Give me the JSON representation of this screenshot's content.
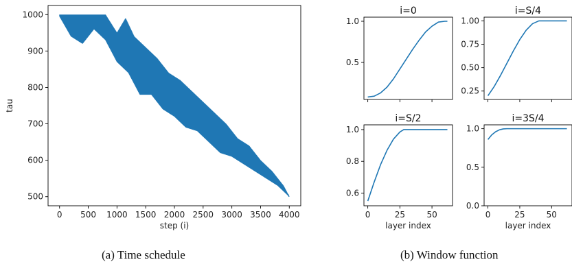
{
  "captions": {
    "left": "(a) Time schedule",
    "right": "(b) Window function"
  },
  "chart_data": [
    {
      "id": "time-schedule",
      "type": "line",
      "title": "",
      "xlabel": "step (i)",
      "ylabel": "tau",
      "xlim": [
        -200,
        4200
      ],
      "ylim": [
        475,
        1025
      ],
      "xticks": [
        0,
        500,
        1000,
        1500,
        2000,
        2500,
        3000,
        3500,
        4000
      ],
      "yticks": [
        500,
        600,
        700,
        800,
        900,
        1000
      ],
      "color": "#1f77b4",
      "grid": false,
      "series": [
        {
          "name": "",
          "description_points": [
            [
              0,
              1000
            ],
            [
              800,
              960
            ],
            [
              1200,
              880
            ],
            [
              1600,
              820
            ],
            [
              2000,
              760
            ],
            [
              2400,
              720
            ],
            [
              2800,
              680
            ],
            [
              3200,
              630
            ],
            [
              3600,
              570
            ],
            [
              4000,
              500
            ]
          ],
          "upper_envelope": [
            [
              0,
              1000
            ],
            [
              400,
              1000
            ],
            [
              800,
              1000
            ],
            [
              1000,
              950
            ],
            [
              1150,
              990
            ],
            [
              1300,
              940
            ],
            [
              1500,
              910
            ],
            [
              1700,
              880
            ],
            [
              1900,
              840
            ],
            [
              2100,
              820
            ],
            [
              2300,
              790
            ],
            [
              2500,
              760
            ],
            [
              2700,
              730
            ],
            [
              2900,
              700
            ],
            [
              3100,
              660
            ],
            [
              3300,
              640
            ],
            [
              3500,
              600
            ],
            [
              3700,
              570
            ],
            [
              3900,
              530
            ],
            [
              4000,
              500
            ]
          ],
          "lower_envelope": [
            [
              0,
              995
            ],
            [
              200,
              940
            ],
            [
              400,
              920
            ],
            [
              600,
              960
            ],
            [
              800,
              930
            ],
            [
              1000,
              870
            ],
            [
              1200,
              840
            ],
            [
              1400,
              780
            ],
            [
              1600,
              780
            ],
            [
              1800,
              740
            ],
            [
              2000,
              720
            ],
            [
              2200,
              690
            ],
            [
              2400,
              680
            ],
            [
              2600,
              650
            ],
            [
              2800,
              620
            ],
            [
              3000,
              610
            ],
            [
              3200,
              590
            ],
            [
              3400,
              570
            ],
            [
              3600,
              550
            ],
            [
              3800,
              530
            ],
            [
              4000,
              500
            ]
          ]
        }
      ]
    },
    {
      "id": "window-i0",
      "type": "line",
      "title": "i=0",
      "xlabel": "",
      "ylabel": "",
      "xlim": [
        -3,
        66
      ],
      "ylim": [
        0.05,
        1.05
      ],
      "yticks": [
        0.5,
        1.0
      ],
      "ytick_labels": [
        "0.5",
        "1.0"
      ],
      "xticks": [
        0,
        25,
        50
      ],
      "show_xtick_labels": false,
      "color": "#1f77b4",
      "series": [
        {
          "name": "",
          "x": [
            0,
            5,
            10,
            15,
            20,
            25,
            30,
            35,
            40,
            45,
            50,
            55,
            60,
            62
          ],
          "y": [
            0.08,
            0.09,
            0.13,
            0.2,
            0.3,
            0.42,
            0.54,
            0.66,
            0.77,
            0.87,
            0.94,
            0.99,
            1.0,
            1.0
          ]
        }
      ]
    },
    {
      "id": "window-i-s4",
      "type": "line",
      "title": "i=S/4",
      "xlabel": "",
      "ylabel": "",
      "xlim": [
        -3,
        66
      ],
      "ylim": [
        0.16,
        1.04
      ],
      "yticks": [
        0.25,
        0.5,
        0.75,
        1.0
      ],
      "ytick_labels": [
        "0.25",
        "0.50",
        "0.75",
        "1.00"
      ],
      "xticks": [
        0,
        25,
        50
      ],
      "show_xtick_labels": false,
      "color": "#1f77b4",
      "series": [
        {
          "name": "",
          "x": [
            0,
            5,
            10,
            15,
            20,
            25,
            30,
            35,
            40,
            45,
            50,
            55,
            60,
            62
          ],
          "y": [
            0.2,
            0.3,
            0.42,
            0.55,
            0.68,
            0.8,
            0.9,
            0.97,
            1.0,
            1.0,
            1.0,
            1.0,
            1.0,
            1.0
          ]
        }
      ]
    },
    {
      "id": "window-i-s2",
      "type": "line",
      "title": "i=S/2",
      "xlabel": "layer index",
      "ylabel": "",
      "xlim": [
        -3,
        66
      ],
      "ylim": [
        0.52,
        1.03
      ],
      "yticks": [
        0.6,
        0.8,
        1.0
      ],
      "ytick_labels": [
        "0.6",
        "0.8",
        "1.0"
      ],
      "xticks": [
        0,
        25,
        50
      ],
      "show_xtick_labels": true,
      "color": "#1f77b4",
      "series": [
        {
          "name": "",
          "x": [
            0,
            5,
            10,
            15,
            20,
            25,
            28,
            30,
            35,
            40,
            45,
            50,
            55,
            60,
            62
          ],
          "y": [
            0.55,
            0.67,
            0.78,
            0.87,
            0.94,
            0.985,
            1.0,
            1.0,
            1.0,
            1.0,
            1.0,
            1.0,
            1.0,
            1.0,
            1.0
          ]
        }
      ]
    },
    {
      "id": "window-i-3s4",
      "type": "line",
      "title": "i=3S/4",
      "xlabel": "layer index",
      "ylabel": "",
      "xlim": [
        -3,
        66
      ],
      "ylim": [
        0.0,
        1.05
      ],
      "yticks": [
        0.0,
        0.5,
        1.0
      ],
      "ytick_labels": [
        "0.0",
        "0.5",
        "1.0"
      ],
      "xticks": [
        0,
        25,
        50
      ],
      "show_xtick_labels": true,
      "color": "#1f77b4",
      "series": [
        {
          "name": "",
          "x": [
            0,
            3,
            6,
            9,
            12,
            15,
            20,
            30,
            40,
            50,
            60,
            62
          ],
          "y": [
            0.86,
            0.92,
            0.96,
            0.985,
            0.997,
            1.0,
            1.0,
            1.0,
            1.0,
            1.0,
            1.0,
            1.0
          ]
        }
      ]
    }
  ]
}
